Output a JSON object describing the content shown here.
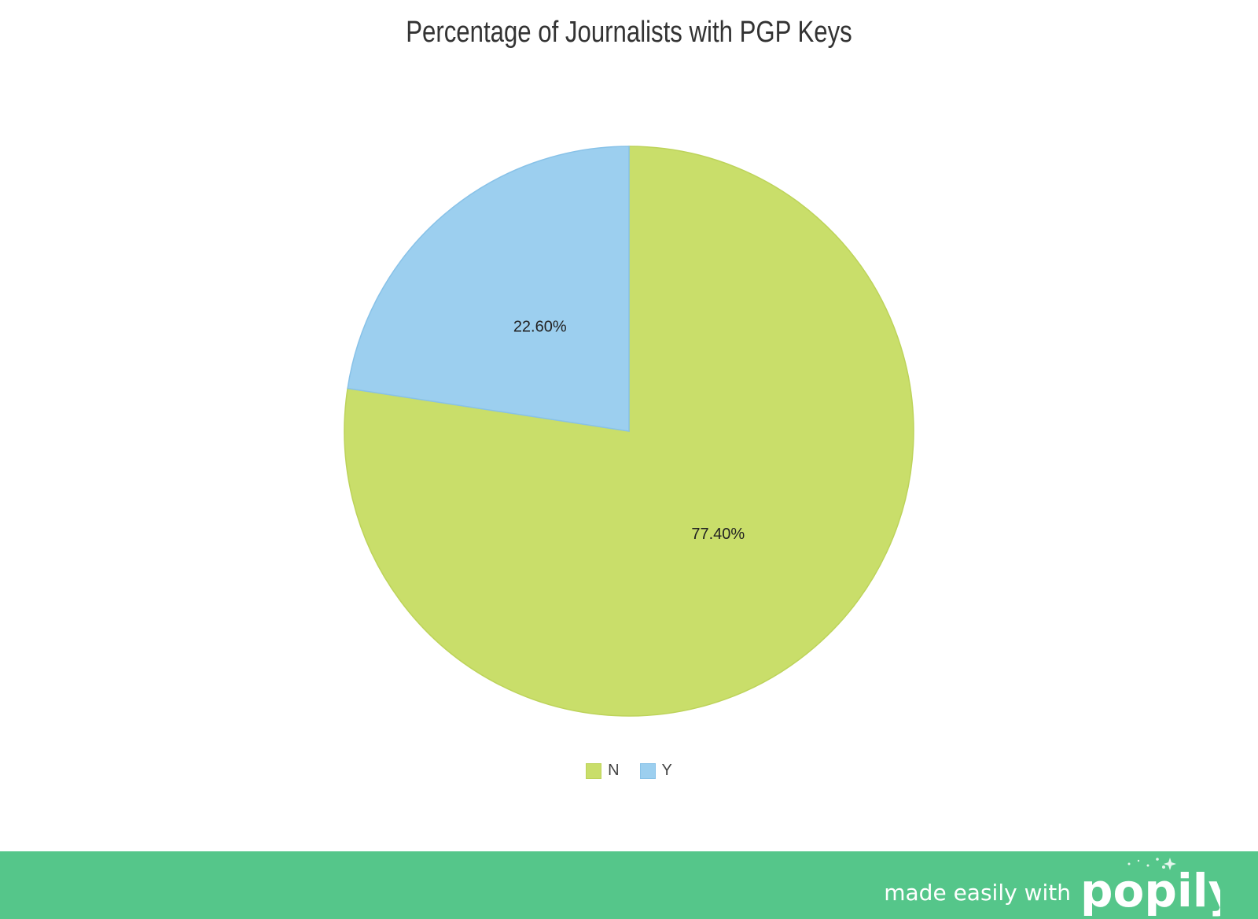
{
  "chart_data": {
    "type": "pie",
    "title": "Percentage of Journalists with PGP Keys",
    "slices": [
      {
        "label": "N",
        "value": 77.4,
        "display": "77.40%",
        "color": "#c9de6a",
        "stroke": "#bdd35a"
      },
      {
        "label": "Y",
        "value": 22.6,
        "display": "22.60%",
        "color": "#9ccfef",
        "stroke": "#88c2e8"
      }
    ],
    "start_angle_deg": 0,
    "direction": "clockwise",
    "legend_position": "bottom-center"
  },
  "footer": {
    "tagline": "made easily with",
    "logo_text": "popily",
    "background_color": "#55c68a"
  }
}
